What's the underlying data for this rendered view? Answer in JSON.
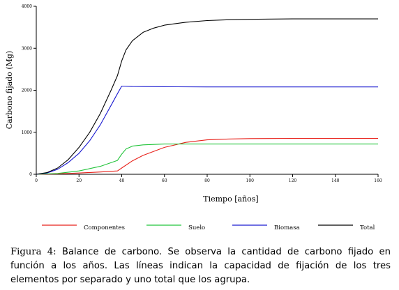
{
  "chart_data": {
    "type": "line",
    "xlabel": "Tiempo [años]",
    "ylabel": "Carbono fijado (Mg)",
    "xlim": [
      0,
      160
    ],
    "ylim": [
      0,
      4000
    ],
    "x_ticks": [
      "0",
      "20",
      "40",
      "60",
      "80",
      "100",
      "120",
      "140",
      "160"
    ],
    "y_ticks": [
      "0",
      "1000",
      "2000",
      "3000",
      "4000"
    ],
    "grid": false,
    "legend_position": "bottom",
    "series": [
      {
        "name": "Componentes",
        "color": "#e8221b",
        "x": [
          0,
          10,
          20,
          30,
          38,
          40,
          45,
          50,
          60,
          70,
          80,
          90,
          100,
          120,
          140,
          160
        ],
        "y": [
          0,
          10,
          30,
          55,
          80,
          150,
          320,
          450,
          640,
          760,
          820,
          840,
          850,
          855,
          855,
          855
        ]
      },
      {
        "name": "Suelo",
        "color": "#22c43a",
        "x": [
          0,
          10,
          20,
          30,
          38,
          40,
          42,
          45,
          50,
          60,
          80,
          100,
          120,
          140,
          160
        ],
        "y": [
          0,
          20,
          80,
          190,
          330,
          480,
          600,
          670,
          700,
          720,
          720,
          720,
          720,
          720,
          720
        ]
      },
      {
        "name": "Biomasa",
        "color": "#1a1ad0",
        "x": [
          0,
          5,
          10,
          15,
          20,
          25,
          30,
          35,
          38,
          40,
          45,
          60,
          80,
          100,
          120,
          140,
          160
        ],
        "y": [
          0,
          30,
          120,
          280,
          500,
          800,
          1180,
          1640,
          1920,
          2100,
          2090,
          2085,
          2080,
          2080,
          2080,
          2080,
          2080
        ]
      },
      {
        "name": "Total",
        "color": "#000000",
        "x": [
          0,
          5,
          10,
          15,
          20,
          25,
          30,
          35,
          38,
          40,
          42,
          45,
          50,
          55,
          60,
          70,
          80,
          90,
          100,
          120,
          140,
          160
        ],
        "y": [
          0,
          40,
          150,
          350,
          640,
          1000,
          1450,
          2000,
          2350,
          2700,
          2960,
          3180,
          3380,
          3480,
          3550,
          3620,
          3660,
          3680,
          3690,
          3700,
          3700,
          3700
        ]
      }
    ]
  },
  "caption": {
    "label": "Figura 4:",
    "text": " Balance de carbono. Se observa la cantidad de carbono fijado en función a los años. Las líneas indican la capacidad de fijación de los tres elementos por separado y uno total que los agrupa."
  }
}
